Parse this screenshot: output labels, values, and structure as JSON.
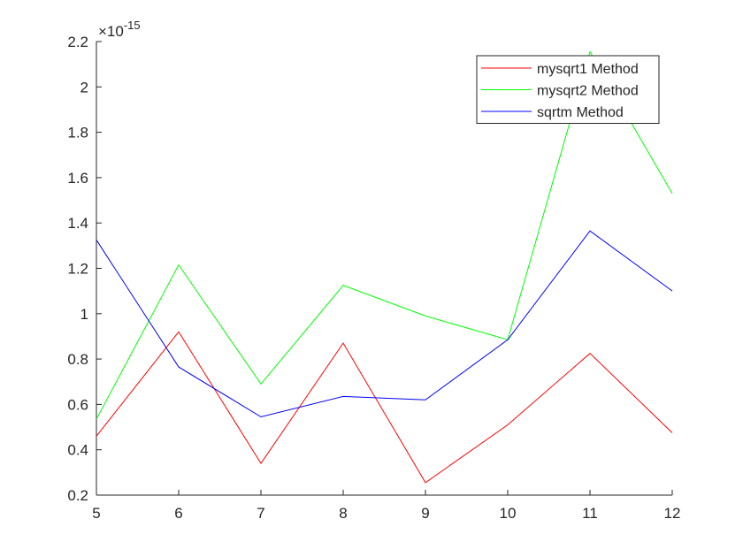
{
  "chart_data": {
    "type": "line",
    "title": "",
    "xlabel": "",
    "ylabel": "",
    "x": [
      5,
      6,
      7,
      8,
      9,
      10,
      11,
      12
    ],
    "xlim": [
      5,
      12
    ],
    "ylim": [
      0.2,
      2.2
    ],
    "x_ticks": [
      "5",
      "6",
      "7",
      "8",
      "9",
      "10",
      "11",
      "12"
    ],
    "y_ticks": [
      "0.2",
      "0.4",
      "0.6",
      "0.8",
      "1",
      "1.2",
      "1.4",
      "1.6",
      "1.8",
      "2",
      "2.2"
    ],
    "y_exponent": {
      "base": "×10",
      "power": "-15"
    },
    "grid": false,
    "legend_position": "top-right",
    "series": [
      {
        "name": "mysqrt1 Method",
        "color": "#ff0000",
        "values": [
          0.46,
          0.92,
          0.34,
          0.87,
          0.255,
          0.51,
          0.825,
          0.475
        ]
      },
      {
        "name": "mysqrt2 Method",
        "color": "#00ff00",
        "values": [
          0.535,
          1.215,
          0.69,
          1.125,
          0.99,
          0.885,
          2.155,
          1.53
        ]
      },
      {
        "name": "sqrtm Method",
        "color": "#0000ff",
        "values": [
          1.325,
          0.765,
          0.545,
          0.635,
          0.62,
          0.885,
          1.365,
          1.1
        ]
      }
    ]
  }
}
